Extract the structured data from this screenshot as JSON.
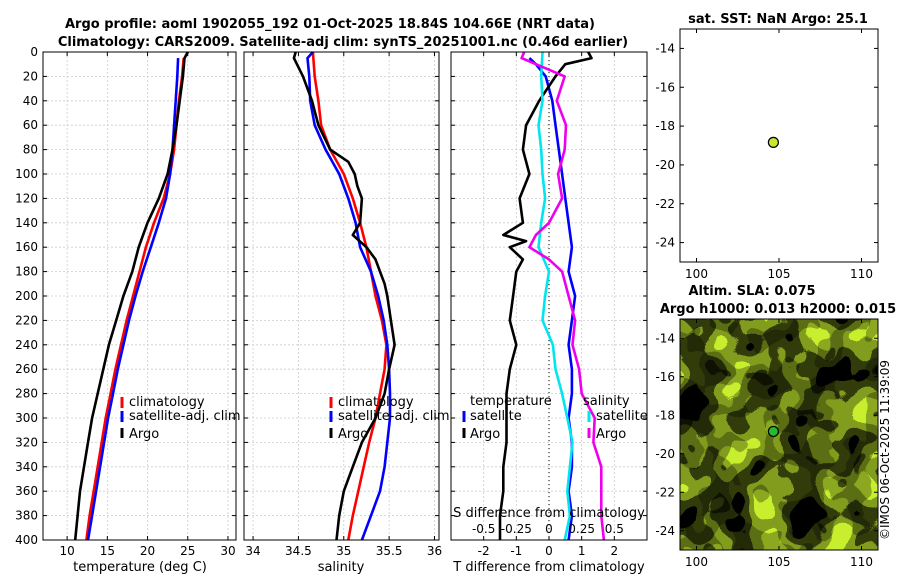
{
  "title": {
    "line1": "Argo profile: aoml 1902055_192 01-Oct-2025 18.84S 104.66E (NRT data)",
    "line2": "Climatology: CARS2009. Satellite-adj clim: synTS_20251001.nc (0.46d earlier)"
  },
  "credit": "©IMOS 06-Oct-2025 11:39:09",
  "colors": {
    "climatology": "#ff0000",
    "satellite": "#0000ff",
    "argo": "#000000",
    "sat_salinity": "#00e5ee",
    "argo_salinity": "#ee00ee"
  },
  "chart_data": [
    {
      "id": "temperature",
      "type": "line",
      "xlabel": "temperature (deg C)",
      "ylabel": "",
      "xlim": [
        7,
        31
      ],
      "ylim": [
        400,
        0
      ],
      "xticks": [
        10,
        15,
        20,
        25,
        30
      ],
      "yticks": [
        0,
        20,
        40,
        60,
        80,
        100,
        120,
        140,
        160,
        180,
        200,
        220,
        240,
        260,
        280,
        300,
        320,
        340,
        360,
        380,
        400
      ],
      "grid": true,
      "legend": "bottom-right",
      "legend_labels": [
        "climatology",
        "satellite-adj. clim",
        "Argo"
      ],
      "series": [
        {
          "name": "climatology",
          "color": "#ff0000",
          "depth": [
            5,
            20,
            40,
            60,
            80,
            100,
            120,
            140,
            160,
            180,
            200,
            220,
            240,
            260,
            280,
            300,
            320,
            340,
            360,
            380,
            400
          ],
          "values": [
            24.5,
            24.3,
            23.9,
            23.6,
            23.3,
            22.8,
            22.0,
            20.8,
            19.8,
            19.0,
            18.2,
            17.4,
            16.7,
            16.0,
            15.4,
            14.8,
            14.3,
            13.8,
            13.3,
            12.8,
            12.4
          ]
        },
        {
          "name": "satellite-adj. clim",
          "color": "#0000ff",
          "depth": [
            5,
            20,
            40,
            60,
            80,
            100,
            120,
            140,
            160,
            180,
            200,
            220,
            240,
            260,
            280,
            300,
            320,
            340,
            360,
            380,
            400
          ],
          "values": [
            23.8,
            23.7,
            23.5,
            23.3,
            23.1,
            22.8,
            22.3,
            21.4,
            20.4,
            19.4,
            18.5,
            17.7,
            17.0,
            16.3,
            15.7,
            15.1,
            14.6,
            14.1,
            13.6,
            13.1,
            12.6
          ]
        },
        {
          "name": "Argo",
          "color": "#000000",
          "depth": [
            0,
            5,
            20,
            40,
            60,
            80,
            100,
            120,
            140,
            160,
            180,
            200,
            220,
            240,
            260,
            280,
            300,
            320,
            340,
            360,
            380,
            400
          ],
          "values": [
            25.0,
            24.6,
            24.4,
            24.0,
            23.6,
            23.1,
            22.5,
            21.4,
            20.0,
            18.9,
            18.1,
            17.0,
            16.1,
            15.2,
            14.5,
            13.8,
            13.1,
            12.6,
            12.1,
            11.6,
            11.3,
            11.0
          ]
        }
      ]
    },
    {
      "id": "salinity",
      "type": "line",
      "xlabel": "salinity",
      "ylabel": "",
      "xlim": [
        33.9,
        36.05
      ],
      "ylim": [
        400,
        0
      ],
      "xticks": [
        34,
        34.5,
        35,
        35.5,
        36
      ],
      "tick_labels": [
        "34",
        "34.5",
        "35",
        "35.5",
        "36"
      ],
      "grid": true,
      "legend": "bottom-right",
      "legend_labels": [
        "climatology",
        "satellite-adj. clim",
        "Argo"
      ],
      "series": [
        {
          "name": "climatology",
          "color": "#ff0000",
          "depth": [
            0,
            20,
            40,
            60,
            80,
            100,
            120,
            140,
            160,
            180,
            200,
            220,
            240,
            260,
            280,
            300,
            320,
            340,
            360,
            380,
            400
          ],
          "values": [
            34.66,
            34.68,
            34.72,
            34.75,
            34.85,
            35.0,
            35.1,
            35.18,
            35.25,
            35.3,
            35.35,
            35.42,
            35.47,
            35.45,
            35.4,
            35.35,
            35.28,
            35.22,
            35.16,
            35.1,
            35.05
          ]
        },
        {
          "name": "satellite-adj. clim",
          "color": "#0000ff",
          "depth": [
            0,
            5,
            20,
            40,
            60,
            80,
            100,
            120,
            140,
            160,
            180,
            200,
            220,
            240,
            260,
            280,
            300,
            320,
            340,
            360,
            380,
            400
          ],
          "values": [
            34.66,
            34.6,
            34.62,
            34.63,
            34.68,
            34.8,
            34.95,
            35.05,
            35.13,
            35.18,
            35.3,
            35.38,
            35.44,
            35.48,
            35.5,
            35.51,
            35.51,
            35.48,
            35.45,
            35.4,
            35.3,
            35.2
          ]
        },
        {
          "name": "Argo",
          "color": "#000000",
          "depth": [
            0,
            5,
            20,
            40,
            60,
            80,
            90,
            100,
            110,
            120,
            140,
            150,
            160,
            170,
            180,
            190,
            200,
            220,
            240,
            260,
            280,
            300,
            320,
            340,
            360,
            380,
            400
          ],
          "values": [
            34.47,
            34.45,
            34.55,
            34.65,
            34.72,
            34.85,
            35.05,
            35.12,
            35.15,
            35.2,
            35.18,
            35.1,
            35.25,
            35.35,
            35.4,
            35.45,
            35.48,
            35.52,
            35.56,
            35.5,
            35.45,
            35.35,
            35.2,
            35.1,
            35.0,
            34.95,
            34.92
          ]
        }
      ]
    },
    {
      "id": "differences",
      "type": "line",
      "xlabel": "T difference from climatology",
      "xlabel_top": "S difference from climatology",
      "xlim": [
        -3,
        3
      ],
      "ylim": [
        400,
        0
      ],
      "xticks": [
        -2,
        -1,
        0,
        1,
        2
      ],
      "s_xlim": [
        -0.75,
        0.75
      ],
      "s_ticks": [
        -0.5,
        -0.25,
        0,
        0.25,
        0.5
      ],
      "s_tick_labels": [
        "-0.5",
        "-0.25",
        "0",
        "0.25",
        "0.5"
      ],
      "grid": true,
      "legend_temperature": {
        "title": "temperature",
        "labels": [
          "satellite",
          "Argo"
        ]
      },
      "legend_salinity": {
        "title": "salinity",
        "labels": [
          "satellite",
          "Argo"
        ]
      },
      "series": [
        {
          "name": "temperature satellite",
          "color": "#0000ff",
          "depth": [
            5,
            10,
            20,
            40,
            60,
            80,
            100,
            120,
            140,
            160,
            180,
            200,
            220,
            240,
            260,
            280,
            300,
            320,
            340,
            360,
            380,
            400
          ],
          "values": [
            -0.6,
            -0.4,
            -0.1,
            0.1,
            0.2,
            0.3,
            0.4,
            0.5,
            0.6,
            0.7,
            0.6,
            0.8,
            0.7,
            0.6,
            0.7,
            0.7,
            0.6,
            0.7,
            0.7,
            0.6,
            0.7,
            0.6
          ]
        },
        {
          "name": "temperature Argo",
          "color": "#000000",
          "depth": [
            0,
            5,
            10,
            20,
            40,
            60,
            80,
            100,
            120,
            140,
            150,
            155,
            160,
            170,
            180,
            200,
            220,
            240,
            260,
            280,
            300,
            320,
            340,
            360,
            380,
            400
          ],
          "values": [
            1.2,
            1.3,
            0.5,
            0.2,
            -0.3,
            -0.7,
            -0.8,
            -0.6,
            -0.9,
            -0.8,
            -1.4,
            -0.7,
            -1.2,
            -0.8,
            -1.0,
            -1.1,
            -1.2,
            -1.0,
            -1.2,
            -1.3,
            -1.3,
            -1.3,
            -1.4,
            -1.4,
            -1.5,
            -1.5
          ]
        },
        {
          "name": "salinity satellite",
          "color": "#00e5ee",
          "depth": [
            0,
            20,
            40,
            60,
            80,
            100,
            120,
            140,
            160,
            180,
            200,
            220,
            240,
            260,
            280,
            300,
            320,
            340,
            360,
            380,
            400
          ],
          "values": [
            -0.05,
            -0.06,
            -0.05,
            -0.08,
            -0.06,
            -0.05,
            -0.03,
            -0.06,
            -0.08,
            0.0,
            -0.03,
            -0.05,
            0.03,
            0.05,
            0.1,
            0.14,
            0.18,
            0.16,
            0.14,
            0.16,
            0.12
          ]
        },
        {
          "name": "salinity Argo",
          "color": "#ee00ee",
          "depth": [
            0,
            5,
            20,
            40,
            60,
            80,
            100,
            120,
            140,
            150,
            160,
            170,
            180,
            200,
            220,
            240,
            260,
            280,
            300,
            320,
            340,
            360,
            380,
            400
          ],
          "values": [
            -0.19,
            -0.21,
            0.12,
            0.06,
            0.13,
            0.12,
            0.07,
            0.1,
            0.0,
            -0.1,
            -0.15,
            0.0,
            0.1,
            0.15,
            0.2,
            0.18,
            0.23,
            0.25,
            0.35,
            0.34,
            0.4,
            0.4,
            0.4,
            0.42
          ]
        }
      ]
    },
    {
      "id": "sst_map",
      "type": "scatter",
      "title": "sat. SST: NaN Argo: 25.1",
      "xlim": [
        99,
        111
      ],
      "ylim": [
        -25,
        -13
      ],
      "xticks": [
        100,
        105,
        110
      ],
      "yticks": [
        -24,
        -22,
        -20,
        -18,
        -16,
        -14
      ],
      "points": [
        {
          "lon": 104.66,
          "lat": -18.84
        }
      ]
    },
    {
      "id": "sla_map",
      "type": "heatmap",
      "title_line1": "Altim. SLA: 0.075",
      "title_line2": "Argo h1000: 0.013 h2000: 0.015",
      "xlim": [
        99,
        111
      ],
      "ylim": [
        -25,
        -13
      ],
      "xticks": [
        100,
        105,
        110
      ],
      "yticks": [
        -24,
        -22,
        -20,
        -18,
        -16,
        -14
      ],
      "points": [
        {
          "lon": 104.66,
          "lat": -18.84
        }
      ]
    }
  ]
}
